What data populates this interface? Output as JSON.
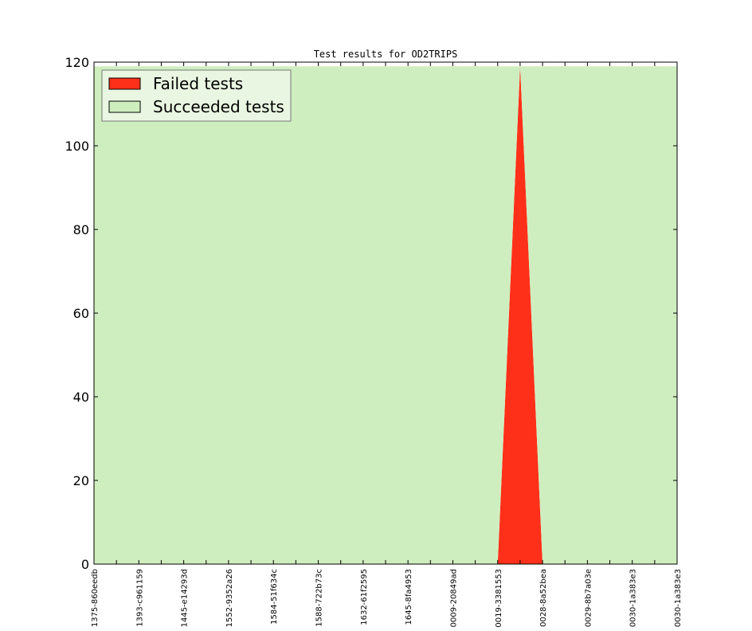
{
  "chart_data": {
    "type": "area",
    "title": "Test results for OD2TRIPS",
    "xlabel": "",
    "ylabel": "",
    "ylim": [
      0,
      120
    ],
    "yticks": [
      0,
      20,
      40,
      60,
      80,
      100,
      120
    ],
    "categories": [
      "1375-860eedb",
      "",
      "1393-c961159",
      "",
      "1445-e14293d",
      "",
      "1552-9352a26",
      "",
      "1584-51f634c",
      "",
      "1588-722b73c",
      "",
      "1632-61f2595",
      "",
      "1645-8fa4953",
      "",
      "0009-20849ad",
      "",
      "0019-3381553",
      "",
      "0028-8a52bea",
      "",
      "0029-8b7a03e",
      "",
      "0030-1a383e3",
      "",
      "0030-1a383e3"
    ],
    "series": [
      {
        "name": "Failed tests",
        "color": "#ff3019",
        "values": [
          0,
          0,
          0,
          0,
          0,
          0,
          0,
          0,
          0,
          0,
          0,
          0,
          0,
          0,
          0,
          0,
          0,
          0,
          0,
          119,
          0,
          0,
          0,
          0,
          0,
          0,
          0
        ]
      },
      {
        "name": "Succeeded tests",
        "color": "#cfeebf",
        "values": [
          119,
          119,
          119,
          119,
          119,
          119,
          119,
          119,
          119,
          119,
          119,
          119,
          119,
          119,
          119,
          119,
          119,
          119,
          119,
          0,
          119,
          119,
          119,
          119,
          119,
          119,
          119
        ]
      }
    ],
    "legend_position": "top-left",
    "grid": false
  }
}
